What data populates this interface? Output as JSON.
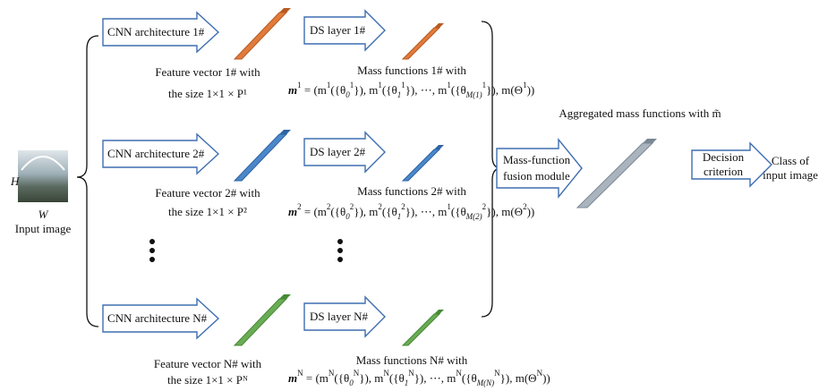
{
  "input": {
    "h_label": "H",
    "w_label": "W",
    "caption": "Input image"
  },
  "rows": [
    {
      "cnn": "CNN architecture 1#",
      "feature": [
        "Feature vector 1# with",
        "the size 1×1 × P¹"
      ],
      "ds": "DS layer 1#",
      "mass": "Mass functions 1# with",
      "formula": [
        {
          "text": "m",
          "sup": "1",
          "bold": true
        },
        {
          "text": " = (m",
          "sup": "1"
        },
        {
          "text": "({θ",
          "sub": "0",
          "sup": "1"
        },
        {
          "text": "}), m",
          "sup": "1"
        },
        {
          "text": "({θ",
          "sub": "1",
          "sup": "1"
        },
        {
          "text": "}), ⋯, m",
          "sup": "1"
        },
        {
          "text": "({θ",
          "sub": "M(1)",
          "sup": "1"
        },
        {
          "text": "}), m(Θ",
          "sup": "1"
        },
        {
          "text": "))"
        }
      ]
    },
    {
      "cnn": "CNN architecture 2#",
      "feature": [
        "Feature vector 2# with",
        "the size 1×1 × P²"
      ],
      "ds": "DS layer 2#",
      "mass": "Mass functions 2# with",
      "formula": [
        {
          "text": "m",
          "sup": "2",
          "bold": true
        },
        {
          "text": " = (m",
          "sup": "2"
        },
        {
          "text": "({θ",
          "sub": "0",
          "sup": "2"
        },
        {
          "text": "}), m",
          "sup": "2"
        },
        {
          "text": "({θ",
          "sub": "1",
          "sup": "2"
        },
        {
          "text": "}), ⋯, m",
          "sup": "1"
        },
        {
          "text": "({θ",
          "sub": "M(2)",
          "sup": "2"
        },
        {
          "text": "}), m(Θ",
          "sup": "2"
        },
        {
          "text": "))"
        }
      ]
    },
    {
      "cnn": "CNN architecture N#",
      "feature": [
        "Feature vector N# with",
        "the size 1×1 × Pᴺ"
      ],
      "ds": "DS layer N#",
      "mass": "Mass functions N# with",
      "formula": [
        {
          "text": "m",
          "sup": "N",
          "bold": true
        },
        {
          "text": " = (m",
          "sup": "N"
        },
        {
          "text": "({θ",
          "sub": "0",
          "sup": "N"
        },
        {
          "text": "}), m",
          "sup": "N"
        },
        {
          "text": "({θ",
          "sub": "1",
          "sup": "N"
        },
        {
          "text": "}), ⋯, m",
          "sup": "N"
        },
        {
          "text": "({θ",
          "sub": "M(N)",
          "sup": "N"
        },
        {
          "text": "}), m(Θ",
          "sup": "N"
        },
        {
          "text": "))"
        }
      ]
    }
  ],
  "fusion": [
    "Mass-function",
    "fusion module"
  ],
  "aggregated": "Aggregated mass functions with m̃",
  "decision": [
    "Decision",
    "criterion"
  ],
  "output": [
    "Class of",
    "input image"
  ]
}
